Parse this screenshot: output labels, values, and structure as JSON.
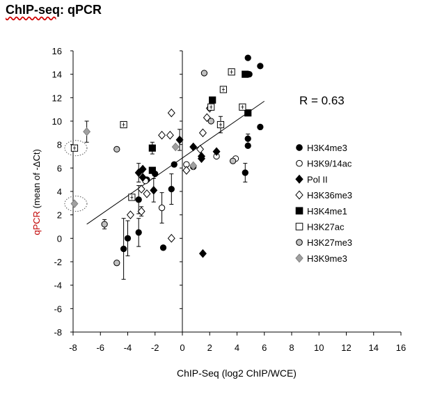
{
  "page": {
    "title_prefix": "ChIP-seq",
    "title_suffix": ": qPCR"
  },
  "chart_data": {
    "type": "scatter",
    "xlabel": "ChIP-Seq (log2 ChIP/WCE)",
    "ylabel_a": "qPCR",
    "ylabel_b": " (mean of -ΔCt)",
    "xlim": [
      -8,
      16
    ],
    "ylim": [
      -8,
      16
    ],
    "xticks": [
      -8,
      -6,
      -4,
      -2,
      0,
      2,
      4,
      6,
      8,
      10,
      12,
      14,
      16
    ],
    "yticks": [
      -8,
      -6,
      -4,
      -2,
      0,
      2,
      4,
      6,
      8,
      10,
      12,
      14,
      16
    ],
    "annotation": "R = 0.63",
    "regression": {
      "x": [
        -7,
        6
      ],
      "y": [
        1.2,
        11.7
      ]
    },
    "highlight_circles": [
      {
        "x": -7.9,
        "y": 7.7
      },
      {
        "x": -7.9,
        "y": 2.95
      }
    ],
    "series": [
      {
        "name": "H3K4me3",
        "marker": "circle",
        "fill": "#000000",
        "stroke": "#000000",
        "points": [
          {
            "x": 4.8,
            "y": 15.4
          },
          {
            "x": 5.7,
            "y": 14.7
          },
          {
            "x": 4.9,
            "y": 14.0
          },
          {
            "x": 5.7,
            "y": 9.5
          },
          {
            "x": 4.8,
            "y": 8.5,
            "err": 0.4
          },
          {
            "x": 4.8,
            "y": 7.9
          },
          {
            "x": 4.6,
            "y": 5.6,
            "err": 0.8
          },
          {
            "x": -0.8,
            "y": 4.2,
            "err": 1.3
          },
          {
            "x": -3.2,
            "y": 3.3,
            "err": 1.2
          },
          {
            "x": -2.0,
            "y": 5.5
          },
          {
            "x": -2.6,
            "y": 5.0
          },
          {
            "x": -3.2,
            "y": 0.5,
            "err": 1.2
          },
          {
            "x": -4.0,
            "y": 0.0,
            "err": 1.5
          },
          {
            "x": -4.3,
            "y": -0.9,
            "err": 2.6
          },
          {
            "x": -1.4,
            "y": -0.8
          },
          {
            "x": 0.8,
            "y": 6.1
          },
          {
            "x": -0.6,
            "y": 6.3
          }
        ]
      },
      {
        "name": "H3K9/14ac",
        "marker": "circle",
        "fill": "#ffffff",
        "stroke": "#000000",
        "points": [
          {
            "x": -1.5,
            "y": 2.6,
            "err": 1.3
          },
          {
            "x": 2.5,
            "y": 7.0
          },
          {
            "x": 3.9,
            "y": 6.8
          },
          {
            "x": -2.7,
            "y": 4.9
          },
          {
            "x": 0.3,
            "y": 6.3
          }
        ]
      },
      {
        "name": "Pol II",
        "marker": "diamond",
        "fill": "#000000",
        "stroke": "#000000",
        "points": [
          {
            "x": -3.2,
            "y": 5.6,
            "err": 0.8
          },
          {
            "x": -2.9,
            "y": 5.9
          },
          {
            "x": -2.9,
            "y": 5.2
          },
          {
            "x": -2.1,
            "y": 4.1,
            "err": 1.0
          },
          {
            "x": -0.2,
            "y": 8.4,
            "err": 0.9
          },
          {
            "x": 0.8,
            "y": 7.8
          },
          {
            "x": 1.4,
            "y": 7.0
          },
          {
            "x": 1.4,
            "y": 6.8
          },
          {
            "x": 2.5,
            "y": 7.4
          },
          {
            "x": 1.5,
            "y": -1.3
          }
        ]
      },
      {
        "name": "H3K36me3",
        "marker": "diamond",
        "fill": "#ffffff",
        "stroke": "#000000",
        "points": [
          {
            "x": -3.8,
            "y": 2.0
          },
          {
            "x": -3.0,
            "y": 2.3,
            "err": 0.4
          },
          {
            "x": -3.0,
            "y": 4.2
          },
          {
            "x": -2.6,
            "y": 3.8
          },
          {
            "x": -1.5,
            "y": 8.8
          },
          {
            "x": -0.9,
            "y": 8.8
          },
          {
            "x": -0.8,
            "y": 10.7
          },
          {
            "x": 1.3,
            "y": 7.6
          },
          {
            "x": 1.5,
            "y": 9.0
          },
          {
            "x": 1.8,
            "y": 10.3
          },
          {
            "x": 2.0,
            "y": 11.1
          },
          {
            "x": -0.8,
            "y": 0.0
          },
          {
            "x": 0.3,
            "y": 5.8
          }
        ]
      },
      {
        "name": "H3K4me1",
        "marker": "square",
        "fill": "#000000",
        "stroke": "#000000",
        "points": [
          {
            "x": -2.2,
            "y": 7.7,
            "err": 0.5
          },
          {
            "x": -2.2,
            "y": 5.8
          },
          {
            "x": 2.2,
            "y": 11.8
          },
          {
            "x": 4.6,
            "y": 14.0
          },
          {
            "x": 4.8,
            "y": 10.7
          }
        ]
      },
      {
        "name": "H3K27ac",
        "marker": "square",
        "fill": "#ffffff",
        "stroke": "#000000",
        "points": [
          {
            "x": -7.9,
            "y": 7.7
          },
          {
            "x": -4.3,
            "y": 9.7
          },
          {
            "x": -3.7,
            "y": 3.5
          },
          {
            "x": 2.8,
            "y": 9.7,
            "err": 0.7
          },
          {
            "x": 2.1,
            "y": 11.2
          },
          {
            "x": 3.0,
            "y": 12.7
          },
          {
            "x": 3.6,
            "y": 14.2
          },
          {
            "x": 4.4,
            "y": 11.2
          }
        ]
      },
      {
        "name": "H3K27me3",
        "marker": "circle",
        "fill": "#c0c0c0",
        "stroke": "#000000",
        "points": [
          {
            "x": -4.8,
            "y": -2.1
          },
          {
            "x": -5.7,
            "y": 1.2,
            "err": 0.4
          },
          {
            "x": -4.8,
            "y": 7.6
          },
          {
            "x": 1.6,
            "y": 14.1
          },
          {
            "x": 2.1,
            "y": 10.0
          },
          {
            "x": 3.7,
            "y": 6.6
          }
        ]
      },
      {
        "name": "H3K9me3",
        "marker": "diamond",
        "fill": "#a0a0a0",
        "stroke": "#808080",
        "points": [
          {
            "x": -7.9,
            "y": 2.95
          },
          {
            "x": -7.0,
            "y": 9.1,
            "err": 0.9
          },
          {
            "x": -0.5,
            "y": 7.8
          },
          {
            "x": 0.8,
            "y": 6.2
          }
        ]
      }
    ]
  }
}
